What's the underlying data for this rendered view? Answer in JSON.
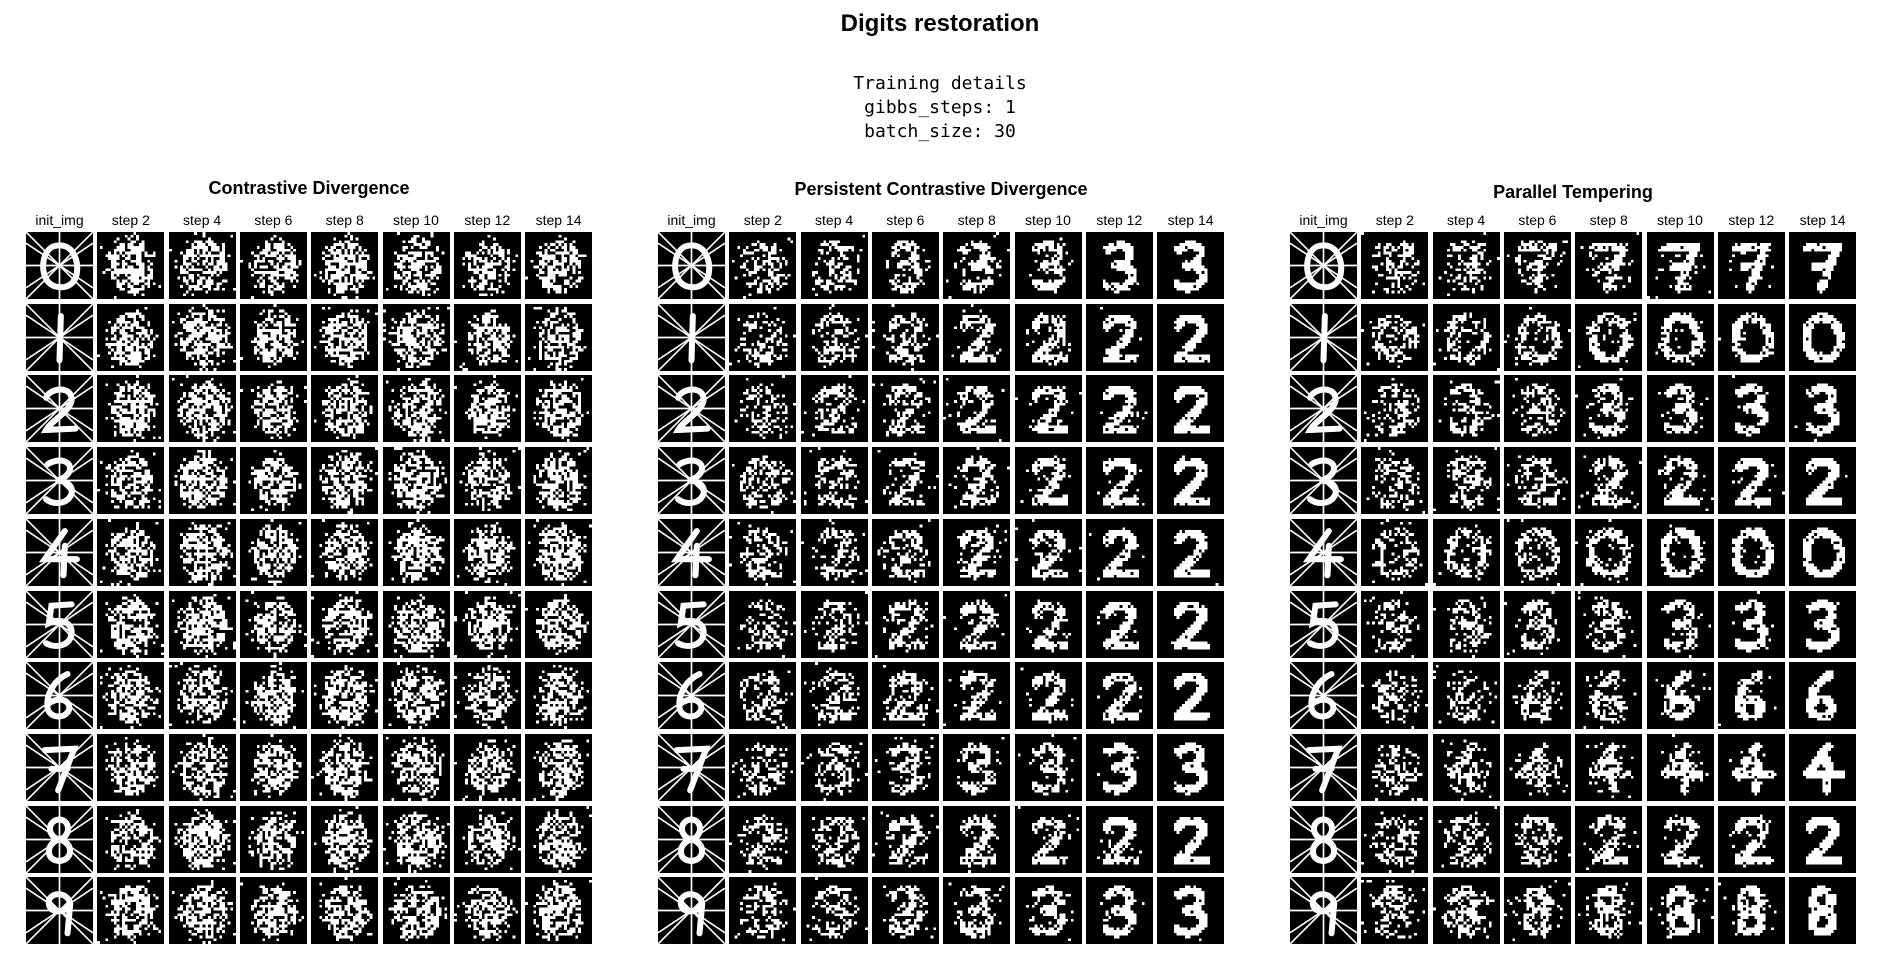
{
  "figure": {
    "title": "Digits restoration",
    "details": [
      "Training details",
      "gibbs_steps: 1",
      "batch_size: 30"
    ]
  },
  "panels": [
    {
      "title": "Contrastive Divergence",
      "restored": false
    },
    {
      "title": "Persistent Contrastive Divergence",
      "restored": true
    },
    {
      "title": "Parallel Tempering",
      "restored": true
    }
  ],
  "columns": [
    "init_img",
    "step 2",
    "step 4",
    "step 6",
    "step 8",
    "step 10",
    "step 12",
    "step 14"
  ],
  "row_digits": [
    "0",
    "1",
    "2",
    "3",
    "4",
    "5",
    "6",
    "7",
    "8",
    "9"
  ],
  "colors": {
    "cell_background": "#000000",
    "ink": "#ffffff",
    "page": "#ffffff"
  }
}
